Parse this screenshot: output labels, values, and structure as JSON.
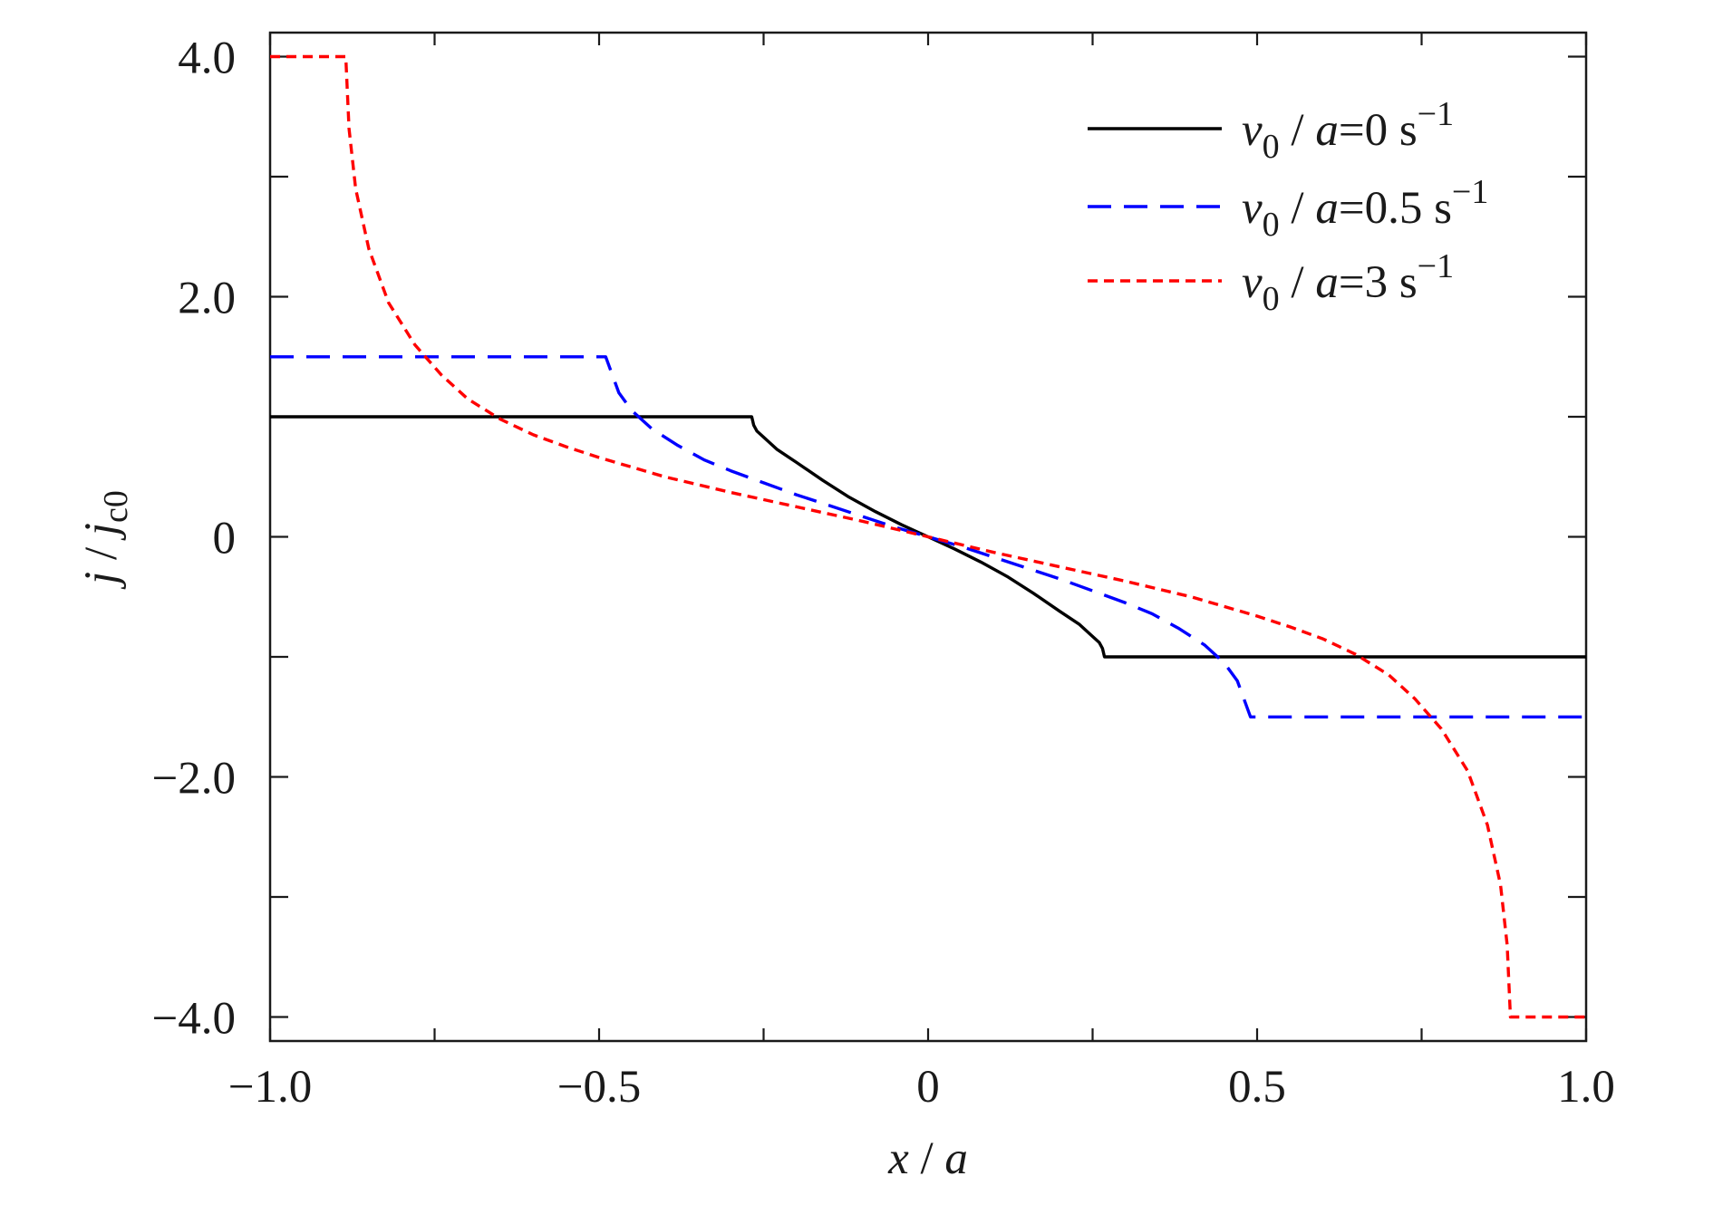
{
  "chart_data": {
    "type": "line",
    "xlabel": {
      "var": "x",
      "sep": " / ",
      "den": "a"
    },
    "ylabel": {
      "var": "j",
      "sep": " / ",
      "den": "j",
      "den_sub": "c0"
    },
    "xlim": [
      -1.0,
      1.0
    ],
    "ylim": [
      -4.2,
      4.2
    ],
    "x_ticks": [
      {
        "value": -1.0,
        "label": "−1.0"
      },
      {
        "value": -0.5,
        "label": "−0.5"
      },
      {
        "value": 0,
        "label": "0"
      },
      {
        "value": 0.5,
        "label": "0.5"
      },
      {
        "value": 1.0,
        "label": "1.0"
      }
    ],
    "y_ticks": [
      {
        "value": 4.0,
        "label": "4.0"
      },
      {
        "value": 2.0,
        "label": "2.0"
      },
      {
        "value": 0,
        "label": "0"
      },
      {
        "value": -2.0,
        "label": "−2.0"
      },
      {
        "value": -4.0,
        "label": "−4.0"
      }
    ],
    "x_minor_ticks": [
      -0.75,
      -0.25,
      0.25,
      0.75
    ],
    "y_minor_ticks": [
      3.0,
      1.0,
      -1.0,
      -3.0
    ],
    "grid": false,
    "legend_position": "top-right",
    "series": [
      {
        "legend": {
          "var": "v",
          "sub": "0",
          "mid": " / ",
          "den": "a",
          "eq": "=",
          "num": "0",
          "unit": " s",
          "sup": "−1"
        },
        "color": "#000000",
        "dash": "solid",
        "x": [
          -1.0,
          -0.268,
          -0.265,
          -0.26,
          -0.25,
          -0.23,
          -0.2,
          -0.16,
          -0.12,
          -0.08,
          -0.04,
          0,
          0.04,
          0.08,
          0.12,
          0.16,
          0.2,
          0.23,
          0.25,
          0.26,
          0.265,
          0.268,
          1.0
        ],
        "y": [
          1.0,
          1.0,
          0.93,
          0.88,
          0.83,
          0.73,
          0.62,
          0.47,
          0.33,
          0.21,
          0.1,
          0,
          -0.1,
          -0.21,
          -0.33,
          -0.47,
          -0.62,
          -0.73,
          -0.83,
          -0.88,
          -0.93,
          -1.0,
          -1.0
        ]
      },
      {
        "legend": {
          "var": "v",
          "sub": "0",
          "mid": " / ",
          "den": "a",
          "eq": "=",
          "num": "0.5",
          "unit": " s",
          "sup": "−1"
        },
        "color": "#0000ff",
        "dash": "dashed",
        "x": [
          -1.0,
          -0.49,
          -0.47,
          -0.45,
          -0.42,
          -0.38,
          -0.34,
          -0.3,
          -0.25,
          -0.2,
          -0.15,
          -0.1,
          -0.05,
          0,
          0.05,
          0.1,
          0.15,
          0.2,
          0.25,
          0.3,
          0.34,
          0.38,
          0.42,
          0.45,
          0.47,
          0.49,
          1.0
        ],
        "y": [
          1.5,
          1.5,
          1.2,
          1.05,
          0.9,
          0.76,
          0.64,
          0.55,
          0.45,
          0.35,
          0.26,
          0.17,
          0.08,
          0,
          -0.08,
          -0.17,
          -0.26,
          -0.35,
          -0.45,
          -0.55,
          -0.64,
          -0.76,
          -0.9,
          -1.05,
          -1.2,
          -1.5,
          -1.5
        ]
      },
      {
        "legend": {
          "var": "v",
          "sub": "0",
          "mid": " / ",
          "den": "a",
          "eq": "=",
          "num": "3",
          "unit": " s",
          "sup": "−1"
        },
        "color": "#ff0000",
        "dash": "dotted",
        "x": [
          -1.0,
          -0.885,
          -0.88,
          -0.87,
          -0.85,
          -0.82,
          -0.78,
          -0.74,
          -0.7,
          -0.65,
          -0.6,
          -0.55,
          -0.5,
          -0.4,
          -0.3,
          -0.2,
          -0.1,
          0,
          0.1,
          0.2,
          0.3,
          0.4,
          0.5,
          0.55,
          0.6,
          0.65,
          0.7,
          0.74,
          0.78,
          0.82,
          0.85,
          0.87,
          0.88,
          0.885,
          1.0
        ],
        "y": [
          4.0,
          4.0,
          3.4,
          2.9,
          2.4,
          1.95,
          1.6,
          1.35,
          1.15,
          0.98,
          0.85,
          0.75,
          0.66,
          0.5,
          0.37,
          0.25,
          0.13,
          0,
          -0.13,
          -0.25,
          -0.37,
          -0.5,
          -0.66,
          -0.75,
          -0.85,
          -0.98,
          -1.15,
          -1.35,
          -1.6,
          -1.95,
          -2.4,
          -2.9,
          -3.4,
          -4.0,
          -4.0
        ]
      }
    ]
  }
}
